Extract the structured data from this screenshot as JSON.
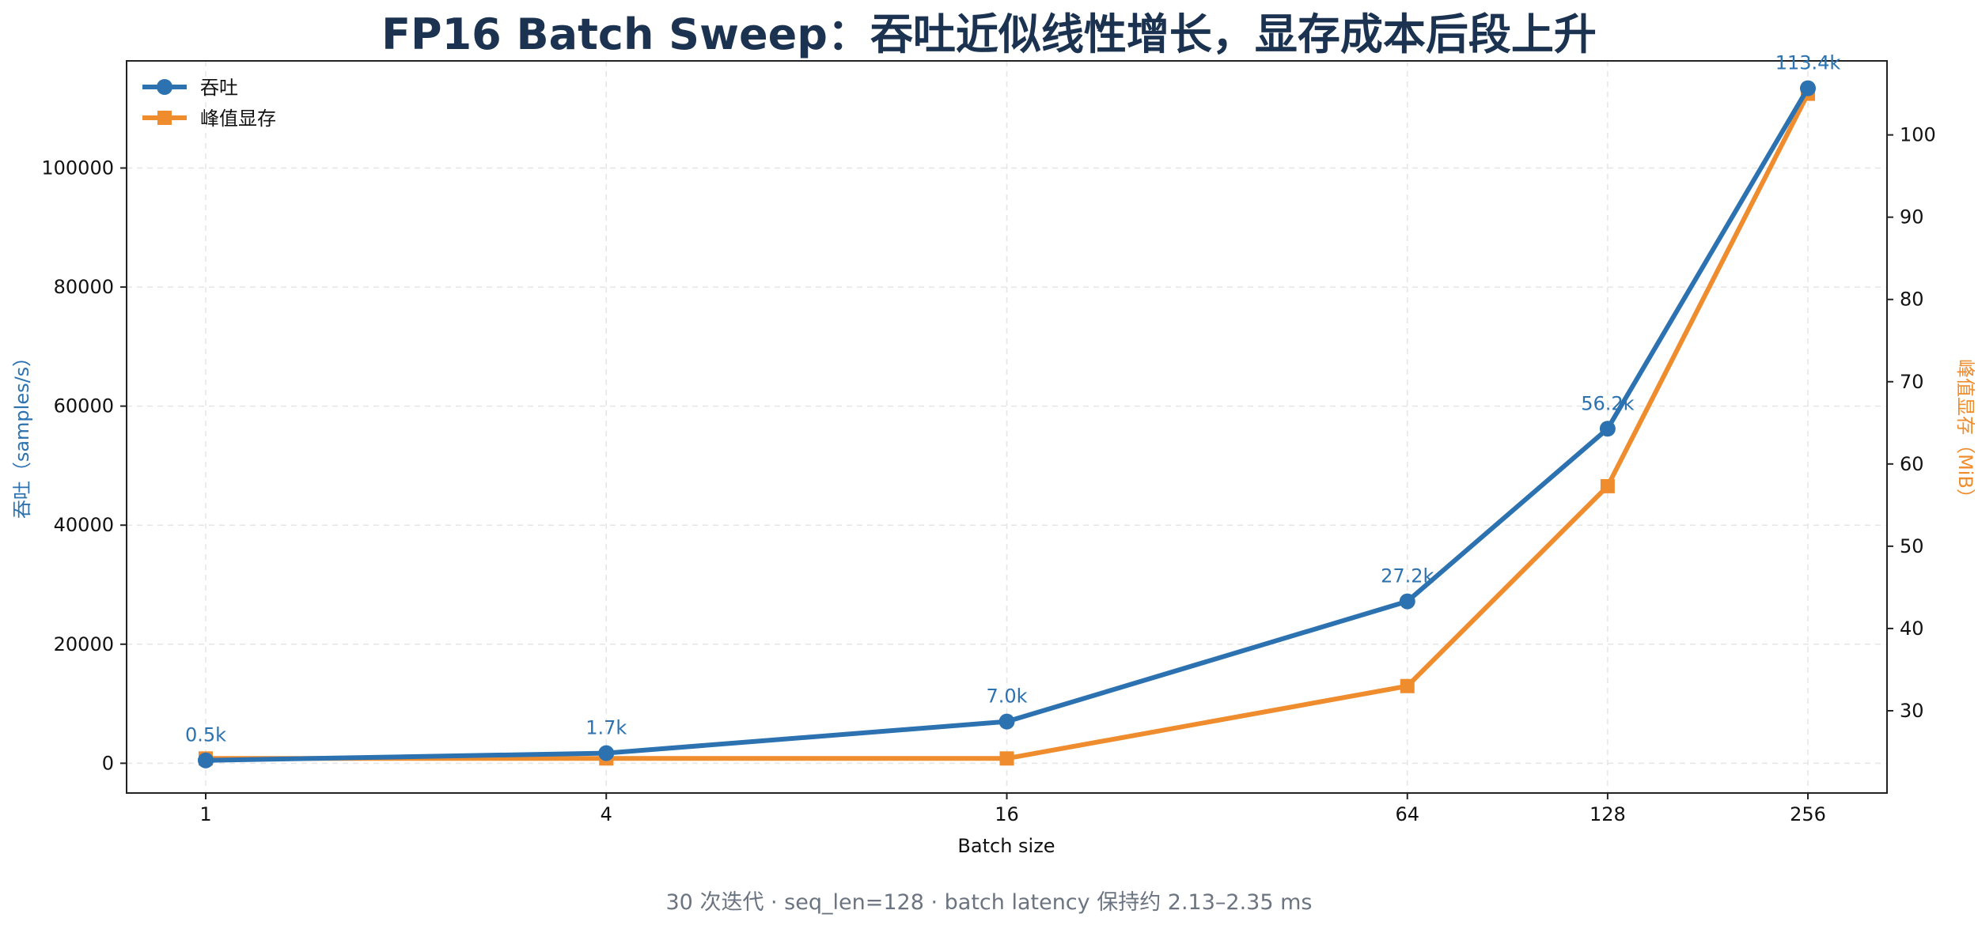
{
  "colors": {
    "throughput": "#2c72b0",
    "memory": "#ef8c2e",
    "title": "#1b3350",
    "caption": "#6b7480"
  },
  "chart_data": {
    "type": "line",
    "title": "FP16 Batch Sweep：吞吐近似线性增长，显存成本后段上升",
    "xlabel": "Batch size",
    "x_scale": "log2",
    "categories": [
      "1",
      "4",
      "16",
      "64",
      "128",
      "256"
    ],
    "x": [
      1,
      4,
      16,
      64,
      128,
      256
    ],
    "y_left": {
      "label": "吞吐（samples/s）",
      "ylim": [
        -5000,
        118000
      ],
      "ticks": [
        "0",
        "20000",
        "40000",
        "60000",
        "80000",
        "100000"
      ]
    },
    "y_right": {
      "label": "峰值显存（MiB）",
      "ylim": [
        20,
        109
      ],
      "ticks": [
        "30",
        "40",
        "50",
        "60",
        "70",
        "80",
        "90",
        "100"
      ]
    },
    "series": [
      {
        "name": "吞吐",
        "axis": "left",
        "marker": "circle",
        "values": [
          480,
          1700,
          7000,
          27200,
          56200,
          113400
        ],
        "data_labels": [
          "0.5k",
          "1.7k",
          "7.0k",
          "27.2k",
          "56.2k",
          "113.4k"
        ]
      },
      {
        "name": "峰值显存",
        "axis": "right",
        "marker": "square",
        "values": [
          24.2,
          24.2,
          24.2,
          33.0,
          57.3,
          105.0
        ]
      }
    ],
    "grid": true,
    "legend": "top-left",
    "caption": "30 次迭代 · seq_len=128 · batch latency 保持约 2.13–2.35 ms"
  }
}
